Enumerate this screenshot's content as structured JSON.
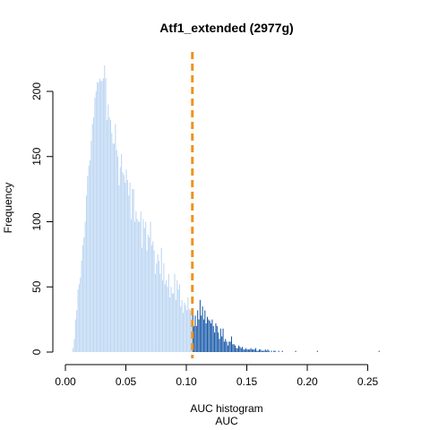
{
  "chart_data": {
    "type": "bar",
    "title": "Atf1_extended (2977g)",
    "xlabel": "AUC",
    "sub_xlabel": "AUC histogram",
    "ylabel": "Frequency",
    "xlim": [
      0,
      0.27
    ],
    "ylim": [
      0,
      230
    ],
    "x_ticks": [
      0.0,
      0.05,
      0.1,
      0.15,
      0.2,
      0.25
    ],
    "x_tick_labels": [
      "0.00",
      "0.05",
      "0.10",
      "0.15",
      "0.20",
      "0.25"
    ],
    "y_ticks": [
      0,
      50,
      100,
      150,
      200
    ],
    "y_tick_labels": [
      "0",
      "50",
      "100",
      "150",
      "200"
    ],
    "threshold": 0.105,
    "bin_width": 0.001,
    "bin_start": 0.006,
    "values": [
      3,
      10,
      25,
      32,
      48,
      52,
      57,
      70,
      82,
      88,
      100,
      120,
      135,
      143,
      147,
      162,
      175,
      180,
      195,
      200,
      207,
      207,
      210,
      208,
      208,
      210,
      220,
      210,
      178,
      190,
      180,
      178,
      168,
      160,
      160,
      175,
      155,
      150,
      128,
      142,
      152,
      138,
      136,
      130,
      140,
      132,
      120,
      130,
      102,
      125,
      125,
      100,
      108,
      102,
      100,
      100,
      108,
      80,
      102,
      95,
      100,
      78,
      90,
      88,
      100,
      82,
      85,
      78,
      60,
      68,
      75,
      70,
      60,
      80,
      55,
      68,
      52,
      55,
      50,
      60,
      42,
      50,
      45,
      45,
      60,
      40,
      55,
      48,
      52,
      35,
      40,
      30,
      38,
      36,
      32,
      42,
      33,
      32,
      30,
      30,
      20,
      28,
      20,
      32,
      25,
      40,
      28,
      35,
      25,
      32,
      22,
      27,
      25,
      24,
      22,
      25,
      20,
      15,
      22,
      20,
      15,
      10,
      18,
      12,
      18,
      8,
      10,
      8,
      5,
      8,
      8,
      12,
      6,
      6,
      5,
      3,
      3,
      5,
      4,
      3,
      4,
      2,
      2,
      3,
      2,
      2,
      2,
      3,
      2,
      2,
      2,
      3,
      1,
      1,
      2,
      2,
      1,
      1,
      1,
      2,
      1,
      2,
      1,
      0,
      1,
      0,
      1,
      1,
      0,
      0,
      1,
      0,
      0,
      1,
      0,
      0,
      0,
      0,
      0,
      0,
      0,
      0,
      0,
      0,
      1,
      0,
      0,
      0,
      0,
      0,
      0,
      0,
      0,
      0,
      0,
      0,
      0,
      0,
      0,
      0,
      0,
      0,
      1,
      0,
      0,
      0,
      0,
      0,
      0,
      0,
      0,
      0,
      0,
      0,
      0,
      0,
      0,
      0,
      0,
      0,
      0,
      0,
      0,
      0,
      0,
      0,
      0,
      0,
      0,
      0,
      0,
      0,
      0,
      0,
      0,
      0,
      0,
      0,
      0,
      0,
      0,
      0,
      0,
      0,
      0,
      0,
      0,
      0,
      0,
      0,
      0,
      0,
      0,
      1
    ],
    "colors": {
      "below_threshold": "#bcd6f3",
      "above_threshold": "#1a5aa8",
      "threshold_line": "#f0921e"
    },
    "grid": false,
    "legend": "none"
  }
}
